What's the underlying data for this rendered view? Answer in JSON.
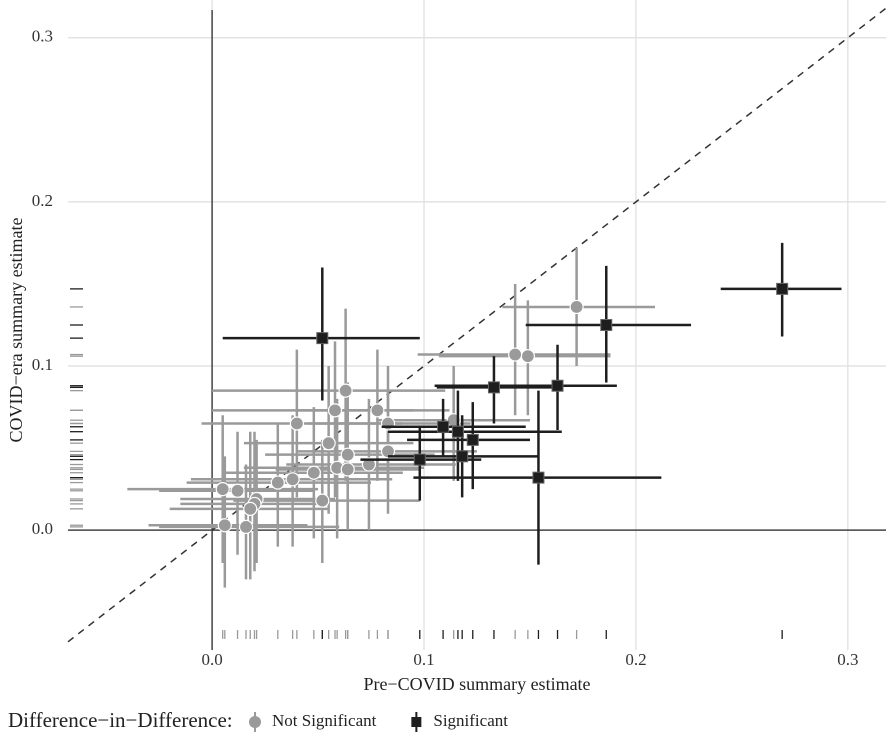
{
  "chart_data": {
    "type": "scatter",
    "x_label": "Pre−COVID summary estimate",
    "y_label": "COVID−era summary estimate",
    "legend_title": "Difference−in−Difference:",
    "legend_position": "bottom",
    "grid": true,
    "xlim": [
      -0.068,
      0.318
    ],
    "ylim": [
      -0.073,
      0.323
    ],
    "xticks": [
      {
        "value": 0,
        "label": "0.0"
      },
      0.1,
      0.2,
      0.3
    ],
    "yticks": [
      {
        "value": 0,
        "label": "0.0"
      },
      0.1,
      0.2,
      0.3
    ],
    "series": [
      {
        "name": "Not Significant",
        "color": "#9a9a9a",
        "marker": "circle",
        "x": [
          0.172,
          0.149,
          0.143,
          0.114,
          0.063,
          0.078,
          0.058,
          0.04,
          0.083,
          0.055,
          0.064,
          0.083,
          0.074,
          0.059,
          0.064,
          0.048,
          0.038,
          0.031,
          0.052,
          0.005,
          0.012,
          0.021,
          0.02,
          0.018,
          0.006,
          0.016
        ],
        "values": [
          0.136,
          0.106,
          0.107,
          0.067,
          0.085,
          0.073,
          0.073,
          0.065,
          0.065,
          0.053,
          0.046,
          0.048,
          0.04,
          0.038,
          0.037,
          0.035,
          0.031,
          0.029,
          0.018,
          0.025,
          0.024,
          0.019,
          0.016,
          0.013,
          0.003,
          0.002
        ],
        "x_lower": [
          0.137,
          0.107,
          0.097,
          0.078,
          0.0,
          0.04,
          0.0,
          -0.005,
          0.045,
          0.015,
          0.025,
          0.04,
          0.035,
          0.015,
          0.03,
          0.005,
          -0.01,
          -0.012,
          0.01,
          -0.04,
          -0.025,
          -0.015,
          -0.015,
          -0.02,
          -0.03,
          -0.025
        ],
        "x_upper": [
          0.209,
          0.188,
          0.188,
          0.15,
          0.11,
          0.112,
          0.095,
          0.09,
          0.122,
          0.095,
          0.105,
          0.125,
          0.115,
          0.1,
          0.098,
          0.09,
          0.085,
          0.075,
          0.098,
          0.05,
          0.048,
          0.058,
          0.055,
          0.055,
          0.045,
          0.06
        ],
        "y_lower": [
          0.1,
          0.07,
          0.07,
          0.03,
          0.03,
          0.03,
          0.02,
          0.02,
          0.03,
          0.01,
          0.0,
          0.01,
          0.0,
          -0.005,
          0.005,
          -0.005,
          -0.01,
          -0.01,
          -0.02,
          -0.02,
          -0.015,
          -0.02,
          -0.025,
          -0.03,
          -0.035,
          -0.03
        ],
        "y_upper": [
          0.172,
          0.14,
          0.15,
          0.1,
          0.135,
          0.11,
          0.115,
          0.11,
          0.1,
          0.1,
          0.09,
          0.085,
          0.08,
          0.08,
          0.07,
          0.075,
          0.07,
          0.065,
          0.055,
          0.07,
          0.06,
          0.055,
          0.06,
          0.06,
          0.045,
          0.04
        ]
      },
      {
        "name": "Significant",
        "color": "#1e1e1e",
        "marker": "square",
        "x": [
          0.052,
          0.269,
          0.186,
          0.163,
          0.133,
          0.154,
          0.109,
          0.116,
          0.123,
          0.098,
          0.118
        ],
        "values": [
          0.117,
          0.147,
          0.125,
          0.088,
          0.087,
          0.032,
          0.063,
          0.06,
          0.055,
          0.043,
          0.045
        ],
        "x_lower": [
          0.005,
          0.24,
          0.148,
          0.105,
          0.106,
          0.095,
          0.08,
          0.083,
          0.092,
          0.07,
          0.083
        ],
        "x_upper": [
          0.098,
          0.297,
          0.226,
          0.191,
          0.165,
          0.212,
          0.148,
          0.165,
          0.15,
          0.127,
          0.154
        ],
        "y_lower": [
          0.079,
          0.118,
          0.09,
          0.061,
          0.065,
          -0.021,
          0.045,
          0.03,
          0.025,
          0.018,
          0.02
        ],
        "y_upper": [
          0.16,
          0.175,
          0.161,
          0.113,
          0.106,
          0.085,
          0.08,
          0.085,
          0.078,
          0.063,
          0.07
        ]
      }
    ]
  }
}
